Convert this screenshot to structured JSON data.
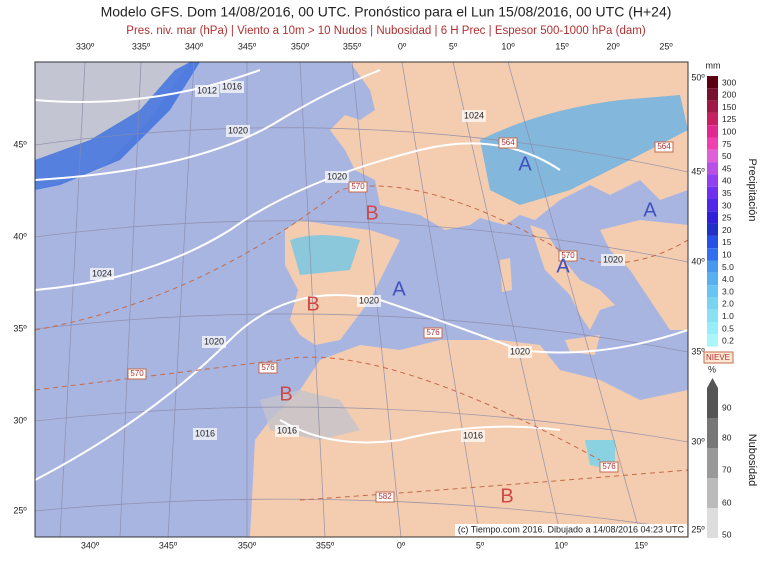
{
  "header": {
    "title": "Modelo GFS. Dom 14/08/2016, 00 UTC. Pronóstico para el Lun 15/08/2016, 00 UTC (H+24)",
    "subtitle": "Pres. niv. mar (hPa) | Viento a 10m > 10 Nudos | Nubosidad | 6 H Prec | Espesor 500-1000 hPa (dam)"
  },
  "map": {
    "top_lon_labels": [
      "330º",
      "335º",
      "340º",
      "345º",
      "350º",
      "355º",
      "0º",
      "5º",
      "10º",
      "15º",
      "20º",
      "25º"
    ],
    "bottom_lon_labels": [
      "340º",
      "345º",
      "350º",
      "355º",
      "0º",
      "5º",
      "10º",
      "15º"
    ],
    "left_lat_labels": [
      "45º",
      "40º",
      "35º",
      "30º",
      "25º"
    ],
    "right_lat_labels": [
      "50º",
      "45º",
      "40º",
      "35º",
      "30º",
      "25º"
    ],
    "isobar_labels": [
      "1012",
      "1016",
      "1020",
      "1020",
      "1024",
      "1024",
      "1020",
      "1020",
      "1020",
      "1020",
      "1016",
      "1016",
      "1016"
    ],
    "thickness_labels": [
      "570",
      "564",
      "564",
      "570",
      "576",
      "576",
      "570",
      "576",
      "582"
    ],
    "pressure_centers": [
      "B",
      "A",
      "A",
      "A",
      "A",
      "B",
      "B",
      "B"
    ],
    "credit": "(c) Tiempo.com 2016. Dibujado a 14/08/2016 04:23 UTC"
  },
  "precip_legend": {
    "unit": "mm",
    "title": "Precipitación",
    "ticks": [
      "300",
      "200",
      "150",
      "125",
      "100",
      "75",
      "50",
      "45",
      "40",
      "35",
      "30",
      "25",
      "20",
      "15",
      "10",
      "5.0",
      "4.0",
      "3.0",
      "2.0",
      "1.0",
      "0.5",
      "0.2"
    ]
  },
  "cloud_legend": {
    "snow_label": "NIEVE",
    "unit": "%",
    "title": "Nubosidad",
    "ticks": [
      "90",
      "80",
      "70",
      "60",
      "50"
    ]
  }
}
